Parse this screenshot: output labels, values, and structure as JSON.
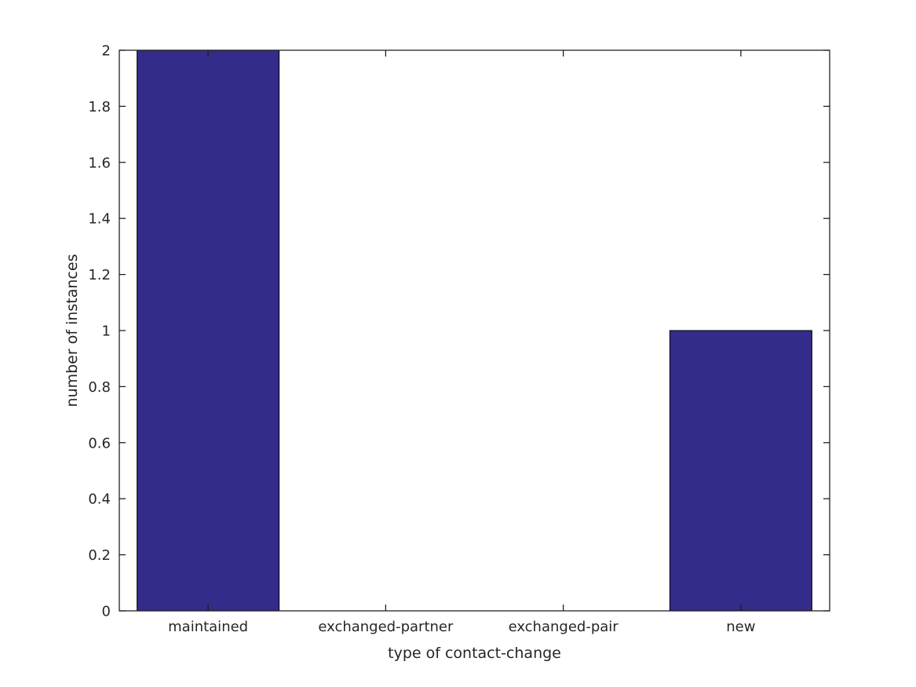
{
  "chart_data": {
    "type": "bar",
    "title": "",
    "categories": [
      "maintained",
      "exchanged-partner",
      "exchanged-pair",
      "new"
    ],
    "values": [
      2,
      0,
      0,
      1
    ],
    "xlabel": "type of contact-change",
    "ylabel": "number of instances",
    "ylim": [
      0,
      2
    ],
    "yticks": [
      0,
      0.2,
      0.4,
      0.6,
      0.8,
      1,
      1.2,
      1.4,
      1.6,
      1.8,
      2
    ],
    "ytick_labels": [
      "0",
      "0.2",
      "0.4",
      "0.6",
      "0.8",
      "1",
      "1.2",
      "1.4",
      "1.6",
      "1.8",
      "2"
    ],
    "legend": null,
    "grid": false,
    "bar_width_fraction": 0.8,
    "colors": {
      "bar_fill": "#342c8a",
      "bar_edge": "#000000",
      "axis_line": "#1a1a1a",
      "tick_text": "#262626",
      "background": "#ffffff"
    }
  }
}
